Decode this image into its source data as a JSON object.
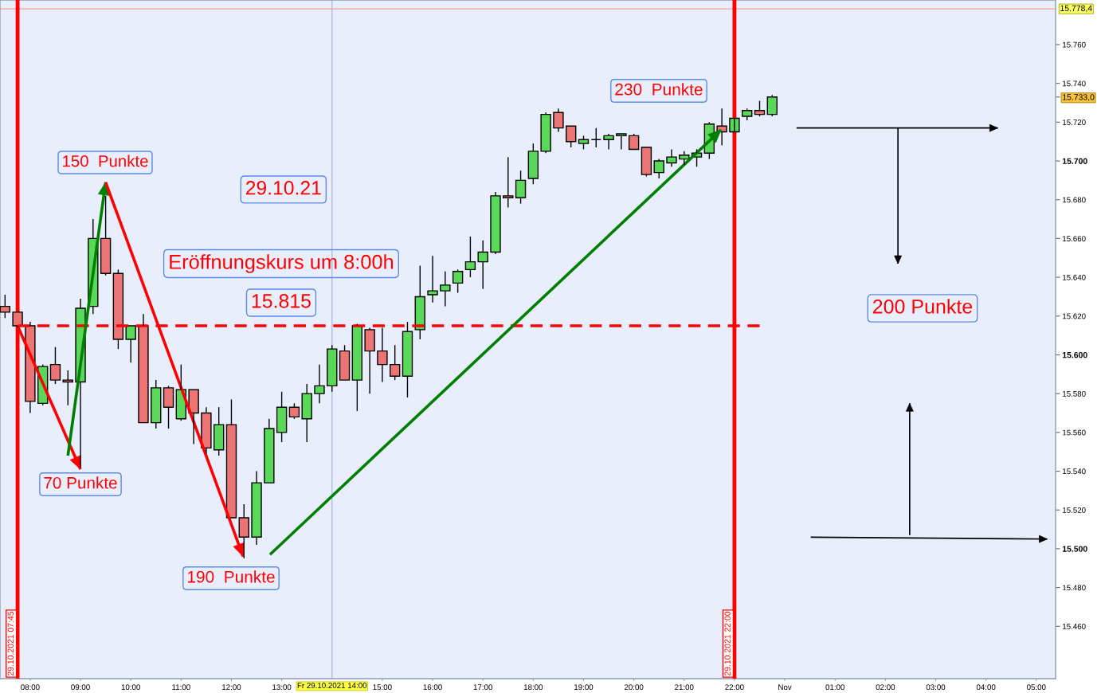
{
  "chart_data": [
    {
      "type": "candlestick",
      "x": [
        "2021-10-29T07:30",
        "2021-10-29T07:45",
        "2021-10-29T08:00",
        "2021-10-29T08:15",
        "2021-10-29T08:30",
        "2021-10-29T08:45",
        "2021-10-29T09:00",
        "2021-10-29T09:15",
        "2021-10-29T09:30",
        "2021-10-29T09:45",
        "2021-10-29T10:00",
        "2021-10-29T10:15",
        "2021-10-29T10:30",
        "2021-10-29T10:45",
        "2021-10-29T11:00",
        "2021-10-29T11:15",
        "2021-10-29T11:30",
        "2021-10-29T11:45",
        "2021-10-29T12:00",
        "2021-10-29T12:15",
        "2021-10-29T12:30",
        "2021-10-29T12:45",
        "2021-10-29T13:00",
        "2021-10-29T13:15",
        "2021-10-29T13:30",
        "2021-10-29T13:45",
        "2021-10-29T14:00",
        "2021-10-29T14:15",
        "2021-10-29T14:30",
        "2021-10-29T14:45",
        "2021-10-29T15:00",
        "2021-10-29T15:15",
        "2021-10-29T15:30",
        "2021-10-29T15:45",
        "2021-10-29T16:00",
        "2021-10-29T16:15",
        "2021-10-29T16:30",
        "2021-10-29T16:45",
        "2021-10-29T17:00",
        "2021-10-29T17:15",
        "2021-10-29T17:30",
        "2021-10-29T17:45",
        "2021-10-29T18:00",
        "2021-10-29T18:15",
        "2021-10-29T18:30",
        "2021-10-29T18:45",
        "2021-10-29T19:00",
        "2021-10-29T19:15",
        "2021-10-29T19:30",
        "2021-10-29T19:45",
        "2021-10-29T20:00",
        "2021-10-29T20:15",
        "2021-10-29T20:30",
        "2021-10-29T20:45",
        "2021-10-29T21:00",
        "2021-10-29T21:15",
        "2021-10-29T21:30",
        "2021-10-29T21:45",
        "2021-10-29T22:00",
        "2021-10-29T22:15",
        "2021-10-29T22:30",
        "2021-10-29T22:45"
      ],
      "ohlc": [
        [
          15625,
          15631,
          15619,
          15622
        ],
        [
          15622,
          15622,
          15614,
          15615
        ],
        [
          15615,
          15617,
          15570,
          15576
        ],
        [
          15575,
          15595,
          15574,
          15594
        ],
        [
          15595,
          15604,
          15585,
          15587
        ],
        [
          15587,
          15592,
          15574,
          15586
        ],
        [
          15586,
          15629,
          15542,
          15624
        ],
        [
          15625,
          15670,
          15621,
          15660
        ],
        [
          15660,
          15682,
          15641,
          15642
        ],
        [
          15642,
          15644,
          15603,
          15608
        ],
        [
          15608,
          15615,
          15596,
          15615
        ],
        [
          15615,
          15621,
          15565,
          15565
        ],
        [
          15565,
          15587,
          15562,
          15583
        ],
        [
          15583,
          15584,
          15562,
          15573
        ],
        [
          15567,
          15595,
          15566,
          15582
        ],
        [
          15582,
          15582,
          15554,
          15570
        ],
        [
          15570,
          15573,
          15549,
          15552
        ],
        [
          15551,
          15573,
          15548,
          15564
        ],
        [
          15564,
          15577,
          15516,
          15516
        ],
        [
          15516,
          15523,
          15495,
          15506
        ],
        [
          15506,
          15540,
          15502,
          15534
        ],
        [
          15534,
          15567,
          15534,
          15562
        ],
        [
          15560,
          15581,
          15555,
          15573
        ],
        [
          15573,
          15575,
          15567,
          15568
        ],
        [
          15567,
          15585,
          15555,
          15580
        ],
        [
          15580,
          15595,
          15575,
          15584
        ],
        [
          15584,
          15605,
          15581,
          15603
        ],
        [
          15602,
          15605,
          15587,
          15587
        ],
        [
          15587,
          15616,
          15571,
          15615
        ],
        [
          15613,
          15614,
          15580,
          15602
        ],
        [
          15602,
          15614,
          15586,
          15595
        ],
        [
          15595,
          15605,
          15587,
          15589
        ],
        [
          15589,
          15617,
          15578,
          15612
        ],
        [
          15613,
          15646,
          15608,
          15630
        ],
        [
          15631,
          15651,
          15627,
          15633
        ],
        [
          15633,
          15643,
          15625,
          15636
        ],
        [
          15637,
          15644,
          15632,
          15643
        ],
        [
          15644,
          15661,
          15640,
          15648
        ],
        [
          15648,
          15659,
          15634,
          15653
        ],
        [
          15653,
          15684,
          15652,
          15682
        ],
        [
          15682,
          15702,
          15676,
          15681
        ],
        [
          15681,
          15695,
          15678,
          15690
        ],
        [
          15691,
          15709,
          15688,
          15705
        ],
        [
          15705,
          15725,
          15704,
          15724
        ],
        [
          15725,
          15727,
          15715,
          15717
        ],
        [
          15718,
          15718,
          15707,
          15710
        ],
        [
          15709,
          15713,
          15706,
          15711
        ],
        [
          15711,
          15717,
          15707,
          15711
        ],
        [
          15711,
          15714,
          15706,
          15713
        ],
        [
          15713,
          15714,
          15706,
          15714
        ],
        [
          15713,
          15714,
          15706,
          15706
        ],
        [
          15707,
          15707,
          15692,
          15693
        ],
        [
          15694,
          15701,
          15691,
          15700
        ],
        [
          15699,
          15706,
          15697,
          15702
        ],
        [
          15701,
          15705,
          15698,
          15703
        ],
        [
          15702,
          15706,
          15697,
          15704
        ],
        [
          15704,
          15720,
          15701,
          15719
        ],
        [
          15718,
          15727,
          15708,
          15715
        ],
        [
          15715,
          15722,
          15715,
          15722
        ],
        [
          15723,
          15727,
          15721,
          15726
        ],
        [
          15726,
          15731,
          15723,
          15724
        ],
        [
          15724,
          15734,
          15723,
          15733.0
        ]
      ],
      "colors": [
        "#ec7474",
        "#ec7474",
        "#ec7474",
        "#5ad85a",
        "#ec7474",
        "#ec7474",
        "#5ad85a",
        "#5ad85a",
        "#ec7474",
        "#ec7474",
        "#5ad85a",
        "#ec7474",
        "#5ad85a",
        "#ec7474",
        "#5ad85a",
        "#ec7474",
        "#ec7474",
        "#5ad85a",
        "#ec7474",
        "#ec7474",
        "#5ad85a",
        "#5ad85a",
        "#5ad85a",
        "#ec7474",
        "#5ad85a",
        "#5ad85a",
        "#5ad85a",
        "#ec7474",
        "#5ad85a",
        "#ec7474",
        "#ec7474",
        "#ec7474",
        "#5ad85a",
        "#5ad85a",
        "#5ad85a",
        "#5ad85a",
        "#5ad85a",
        "#5ad85a",
        "#5ad85a",
        "#5ad85a",
        "#ec7474",
        "#5ad85a",
        "#5ad85a",
        "#5ad85a",
        "#ec7474",
        "#ec7474",
        "#5ad85a",
        "#000000",
        "#5ad85a",
        "#5ad85a",
        "#ec7474",
        "#ec7474",
        "#5ad85a",
        "#5ad85a",
        "#5ad85a",
        "#5ad85a",
        "#5ad85a",
        "#ec7474",
        "#5ad85a",
        "#5ad85a",
        "#ec7474",
        "#5ad85a"
      ],
      "series": [
        {
          "type": "line",
          "x": [
            "2021-10-29T07:45",
            "2021-10-29T22:30"
          ],
          "values": [
            15615,
            15615
          ],
          "color": "#ff0000",
          "line_style": "dashed"
        },
        {
          "type": "line",
          "x": [
            "2021-10-29T07:45",
            "2021-10-29T09:00"
          ],
          "values": [
            15615,
            15541
          ],
          "color": "#ff0000",
          "line_style": "solid"
        },
        {
          "type": "line",
          "x": [
            "2021-10-29T08:45",
            "2021-10-29T09:30"
          ],
          "values": [
            15548,
            15689
          ],
          "color": "#008000",
          "line_style": "solid"
        },
        {
          "type": "line",
          "x": [
            "2021-10-29T09:30",
            "2021-10-29T12:14"
          ],
          "values": [
            15689,
            15496
          ],
          "color": "#ff0000",
          "line_style": "solid"
        },
        {
          "type": "line",
          "x": [
            "2021-10-29T12:46",
            "2021-10-29T21:44"
          ],
          "values": [
            15497,
            15716
          ],
          "color": "#008000",
          "line_style": "solid"
        }
      ],
      "ref_lines": [
        {
          "axis": "x",
          "value": "2021-10-29T07:45",
          "label": "29.10.2021 07:45",
          "color": "#ff0000"
        },
        {
          "axis": "x",
          "value": "2021-10-29T22:00",
          "label": "29.10.2021 22:00",
          "color": "#ff0000"
        },
        {
          "axis": "x",
          "value": "2021-10-29T14:00",
          "label": "Fr 29.10.2021 14:00",
          "color": "#a9b9d9"
        },
        {
          "axis": "y",
          "value": 15778.4,
          "color": "#ff9999"
        }
      ],
      "annotations": [
        "230  Punkte",
        "150  Punkte",
        "29.10.21",
        "Eröffnungskurs um 8:00h",
        "15.815",
        "70 Punkte",
        "190  Punkte"
      ],
      "xlim": [
        "2021-10-29T07:24",
        "2021-10-29T23:00"
      ],
      "ylim": [
        15433,
        15783
      ],
      "xticks": [
        {
          "value": "2021-10-29T08:00",
          "label": "08:00"
        },
        {
          "value": "2021-10-29T09:00",
          "label": "09:00"
        },
        {
          "value": "2021-10-29T10:00",
          "label": "10:00"
        },
        {
          "value": "2021-10-29T11:00",
          "label": "11:00"
        },
        {
          "value": "2021-10-29T12:00",
          "label": "12:00"
        },
        {
          "value": "2021-10-29T13:00",
          "label": "13:00"
        },
        {
          "value": "2021-10-29T15:00",
          "label": "15:00"
        },
        {
          "value": "2021-10-29T16:00",
          "label": "16:00"
        },
        {
          "value": "2021-10-29T17:00",
          "label": "17:00"
        },
        {
          "value": "2021-10-29T18:00",
          "label": "18:00"
        },
        {
          "value": "2021-10-29T19:00",
          "label": "19:00"
        },
        {
          "value": "2021-10-29T20:00",
          "label": "20:00"
        },
        {
          "value": "2021-10-29T21:00",
          "label": "21:00"
        },
        {
          "value": "2021-10-29T22:00",
          "label": "22:00"
        }
      ],
      "tick_labels": "x"
    },
    {
      "type": "line",
      "series": [
        {
          "type": "line",
          "x": [
            "2021-11-01T00:14",
            "2021-11-01T04:14"
          ],
          "values": [
            15717,
            15717
          ],
          "color": "#000000",
          "line_style": "solid"
        },
        {
          "type": "line",
          "x": [
            "2021-11-01T02:15",
            "2021-11-01T02:15"
          ],
          "values": [
            15717,
            15647
          ],
          "color": "#000000",
          "line_style": "solid"
        },
        {
          "type": "line",
          "x": [
            "2021-11-01T02:29",
            "2021-11-01T02:29"
          ],
          "values": [
            15507,
            15575
          ],
          "color": "#000000",
          "line_style": "solid"
        },
        {
          "type": "line",
          "x": [
            "2021-11-01T00:31",
            "2021-11-01T05:13"
          ],
          "values": [
            15506,
            15505
          ],
          "color": "#000000",
          "line_style": "solid"
        }
      ],
      "ref_lines": [
        {
          "axis": "y",
          "value": 15778.4,
          "label": "15.778,4",
          "color": "#ff9999"
        }
      ],
      "annotations": [
        "200 Punkte"
      ],
      "xlim": [
        "2021-11-01T00:00",
        "2021-11-01T05:23"
      ],
      "ylim": [
        15433,
        15783
      ],
      "xticks": [
        {
          "value": "2021-11-01T00:00",
          "label": "Nov"
        },
        {
          "value": "2021-11-01T01:00",
          "label": "01:00"
        },
        {
          "value": "2021-11-01T02:00",
          "label": "02:00"
        },
        {
          "value": "2021-11-01T03:00",
          "label": "03:00"
        },
        {
          "value": "2021-11-01T04:00",
          "label": "04:00"
        },
        {
          "value": "2021-11-01T05:00",
          "label": "05:00"
        }
      ],
      "yticks": [
        {
          "value": 15460,
          "label": "15.460"
        },
        {
          "value": 15480,
          "label": "15.480"
        },
        {
          "value": 15500,
          "label": "15.500"
        },
        {
          "value": 15520,
          "label": "15.520"
        },
        {
          "value": 15540,
          "label": "15.540"
        },
        {
          "value": 15560,
          "label": "15.560"
        },
        {
          "value": 15580,
          "label": "15.580"
        },
        {
          "value": 15600,
          "label": "15.600"
        },
        {
          "value": 15620,
          "label": "15.620"
        },
        {
          "value": 15640,
          "label": "15.640"
        },
        {
          "value": 15660,
          "label": "15.660"
        },
        {
          "value": 15680,
          "label": "15.680"
        },
        {
          "value": 15700,
          "label": "15.700"
        },
        {
          "value": 15720,
          "label": "15.720"
        },
        {
          "value": 15733.0,
          "label": "15.733,0"
        },
        {
          "value": 15740,
          "label": "15.740"
        },
        {
          "value": 15760,
          "label": "15.760"
        }
      ]
    }
  ]
}
